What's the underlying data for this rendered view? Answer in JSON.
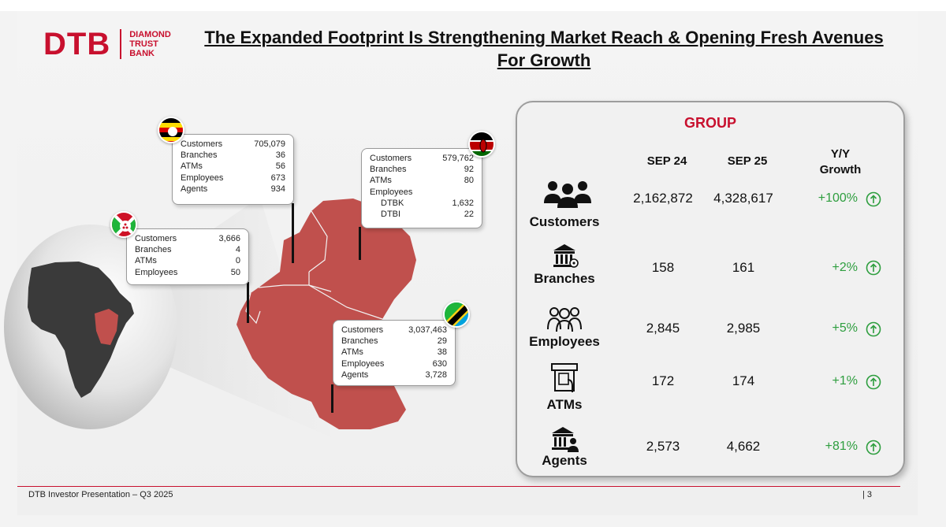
{
  "logo": {
    "mark": "DTB",
    "line1": "DIAMOND",
    "line2": "TRUST",
    "line3": "BANK"
  },
  "title": "The Expanded Footprint Is Strengthening Market Reach & Opening  Fresh Avenues For Growth",
  "colors": {
    "brand_red": "#c8102e",
    "map_red": "#c0504d",
    "growth_green": "#2e9e3f"
  },
  "uganda": {
    "flag": "uganda-flag",
    "rows": [
      {
        "label": "Customers",
        "value": "705,079"
      },
      {
        "label": "Branches",
        "value": "36"
      },
      {
        "label": "ATMs",
        "value": "56"
      },
      {
        "label": "Employees",
        "value": "673"
      },
      {
        "label": "Agents",
        "value": "934"
      }
    ]
  },
  "kenya": {
    "flag": "kenya-flag",
    "rows": [
      {
        "label": "Customers",
        "value": "579,762"
      },
      {
        "label": "Branches",
        "value": "92"
      },
      {
        "label": "ATMs",
        "value": "80"
      },
      {
        "label": "Employees",
        "value": ""
      },
      {
        "label": "DTBK",
        "value": "1,632"
      },
      {
        "label": "DTBI",
        "value": "22"
      }
    ]
  },
  "burundi": {
    "flag": "burundi-flag",
    "rows": [
      {
        "label": "Customers",
        "value": "3,666"
      },
      {
        "label": "Branches",
        "value": "4"
      },
      {
        "label": "ATMs",
        "value": "0"
      },
      {
        "label": "Employees",
        "value": "50"
      }
    ]
  },
  "tanzania": {
    "flag": "tanzania-flag",
    "rows": [
      {
        "label": "Customers",
        "value": "3,037,463"
      },
      {
        "label": "Branches",
        "value": "29"
      },
      {
        "label": "ATMs",
        "value": "38"
      },
      {
        "label": "Employees",
        "value": "630"
      },
      {
        "label": "Agents",
        "value": "3,728"
      }
    ]
  },
  "group": {
    "title": "GROUP",
    "headers": {
      "sep24": "SEP 24",
      "sep25": "SEP 25",
      "growth_line1": "Y/Y",
      "growth_line2": "Growth"
    },
    "metrics": [
      {
        "label": "Customers",
        "icon": "customers-icon",
        "sep24": "2,162,872",
        "sep25": "4,328,617",
        "growth": "+100%"
      },
      {
        "label": "Branches",
        "icon": "bank-branch-icon",
        "sep24": "158",
        "sep25": "161",
        "growth": "+2%"
      },
      {
        "label": "Employees",
        "icon": "employees-icon",
        "sep24": "2,845",
        "sep25": "2,985",
        "growth": "+5%"
      },
      {
        "label": "ATMs",
        "icon": "atm-icon",
        "sep24": "172",
        "sep25": "174",
        "growth": "+1%"
      },
      {
        "label": "Agents",
        "icon": "agent-icon",
        "sep24": "2,573",
        "sep25": "4,662",
        "growth": "+81%"
      }
    ]
  },
  "footer": {
    "text": "DTB Investor Presentation – Q3 2025",
    "page": "| 3"
  }
}
